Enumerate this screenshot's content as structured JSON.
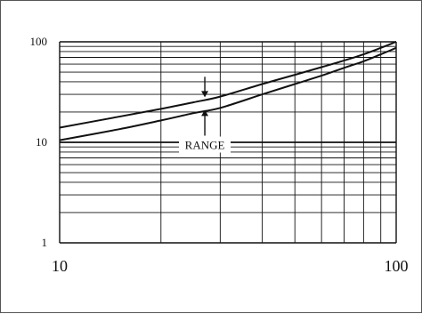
{
  "chart_data": {
    "type": "line",
    "title": "",
    "xlabel": "",
    "ylabel": "",
    "x_scale": "log",
    "y_scale": "log",
    "xlim": [
      10,
      100
    ],
    "ylim": [
      1,
      100
    ],
    "grid": true,
    "x_ticks": [
      10,
      100
    ],
    "x_tick_labels": [
      "10",
      "100"
    ],
    "y_ticks": [
      1,
      10,
      100
    ],
    "y_tick_labels": [
      "1",
      "10",
      "100"
    ],
    "series": [
      {
        "x": [
          10,
          15,
          20,
          25,
          30,
          40,
          50,
          60,
          70,
          80,
          90,
          100
        ],
        "y": [
          14,
          18,
          21.5,
          25,
          28.5,
          38,
          47,
          56,
          65,
          75,
          87,
          100
        ]
      },
      {
        "x": [
          10,
          15,
          20,
          25,
          30,
          40,
          50,
          60,
          70,
          80,
          90,
          100
        ],
        "y": [
          10.5,
          13.5,
          16.5,
          19.5,
          22,
          30,
          38,
          46,
          55,
          64,
          75,
          87
        ]
      }
    ],
    "annotations": [
      {
        "text": "RANGE",
        "x": 27,
        "y": 9.5
      }
    ]
  }
}
